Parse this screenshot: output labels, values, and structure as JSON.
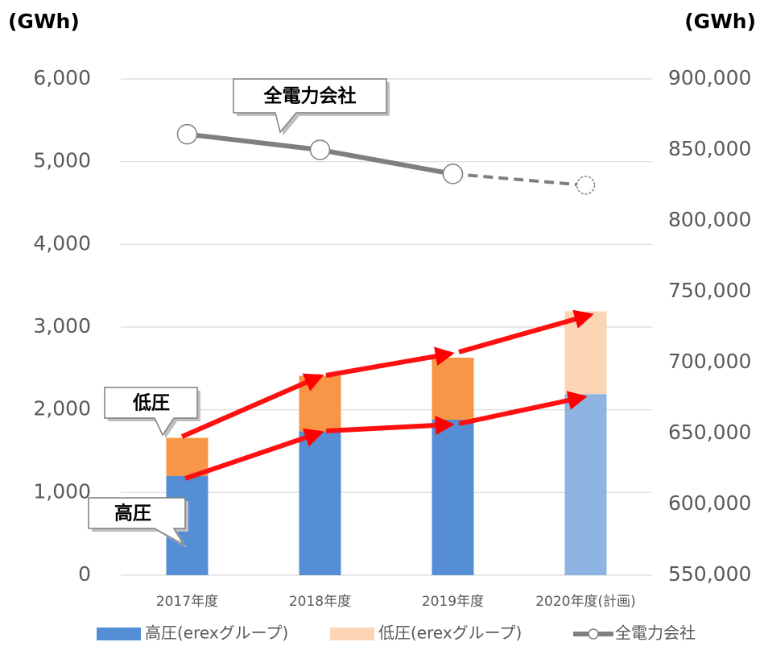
{
  "chart_data": {
    "type": "stacked_bar_line",
    "y_title": "(GWh)",
    "y2_title": "(GWh)",
    "categories": [
      "2017年度",
      "2018年度",
      "2019年度",
      "2020年度(計画)"
    ],
    "series": [
      {
        "name": "高圧(erexグループ)",
        "color": "#558ed5",
        "point_colors": [
          "#558ed5",
          "#558ed5",
          "#558ed5",
          "#8eb4e3"
        ],
        "values": [
          1200,
          1740,
          1880,
          2190
        ]
      },
      {
        "name": "低圧(erexグループ)",
        "color": "#fcd5b5",
        "point_colors": [
          "#f79646",
          "#f79646",
          "#f79646",
          "#fcd5b5"
        ],
        "values": [
          460,
          670,
          750,
          1000
        ]
      },
      {
        "name": "全電力会社",
        "color": "#7f7f7f",
        "axis": "y2",
        "projected_index": 3,
        "values": [
          861000,
          850000,
          833000,
          825000
        ]
      }
    ],
    "ylim": [
      0,
      6000
    ],
    "yticks": [
      0,
      {
        "value": 1000,
        "label": "1,000"
      },
      {
        "value": 2000,
        "label": "2,000"
      },
      {
        "value": 3000,
        "label": "3,000"
      },
      {
        "value": 4000,
        "label": "4,000"
      },
      {
        "value": 5000,
        "label": "5,000"
      },
      {
        "value": 6000,
        "label": "6,000"
      }
    ],
    "y2lim": [
      550000,
      900000
    ],
    "y2ticks": [
      {
        "value": 550000,
        "label": "550,000"
      },
      {
        "value": 600000,
        "label": "600,000"
      },
      {
        "value": 650000,
        "label": "650,000"
      },
      {
        "value": 700000,
        "label": "700,000"
      },
      {
        "value": 750000,
        "label": "750,000"
      },
      {
        "value": 800000,
        "label": "800,000"
      },
      {
        "value": 850000,
        "label": "850,000"
      },
      {
        "value": 900000,
        "label": "900,000"
      }
    ],
    "grid": true,
    "annotations": [
      "全電力会社",
      "低圧",
      "高圧"
    ],
    "legend": "bottom"
  }
}
